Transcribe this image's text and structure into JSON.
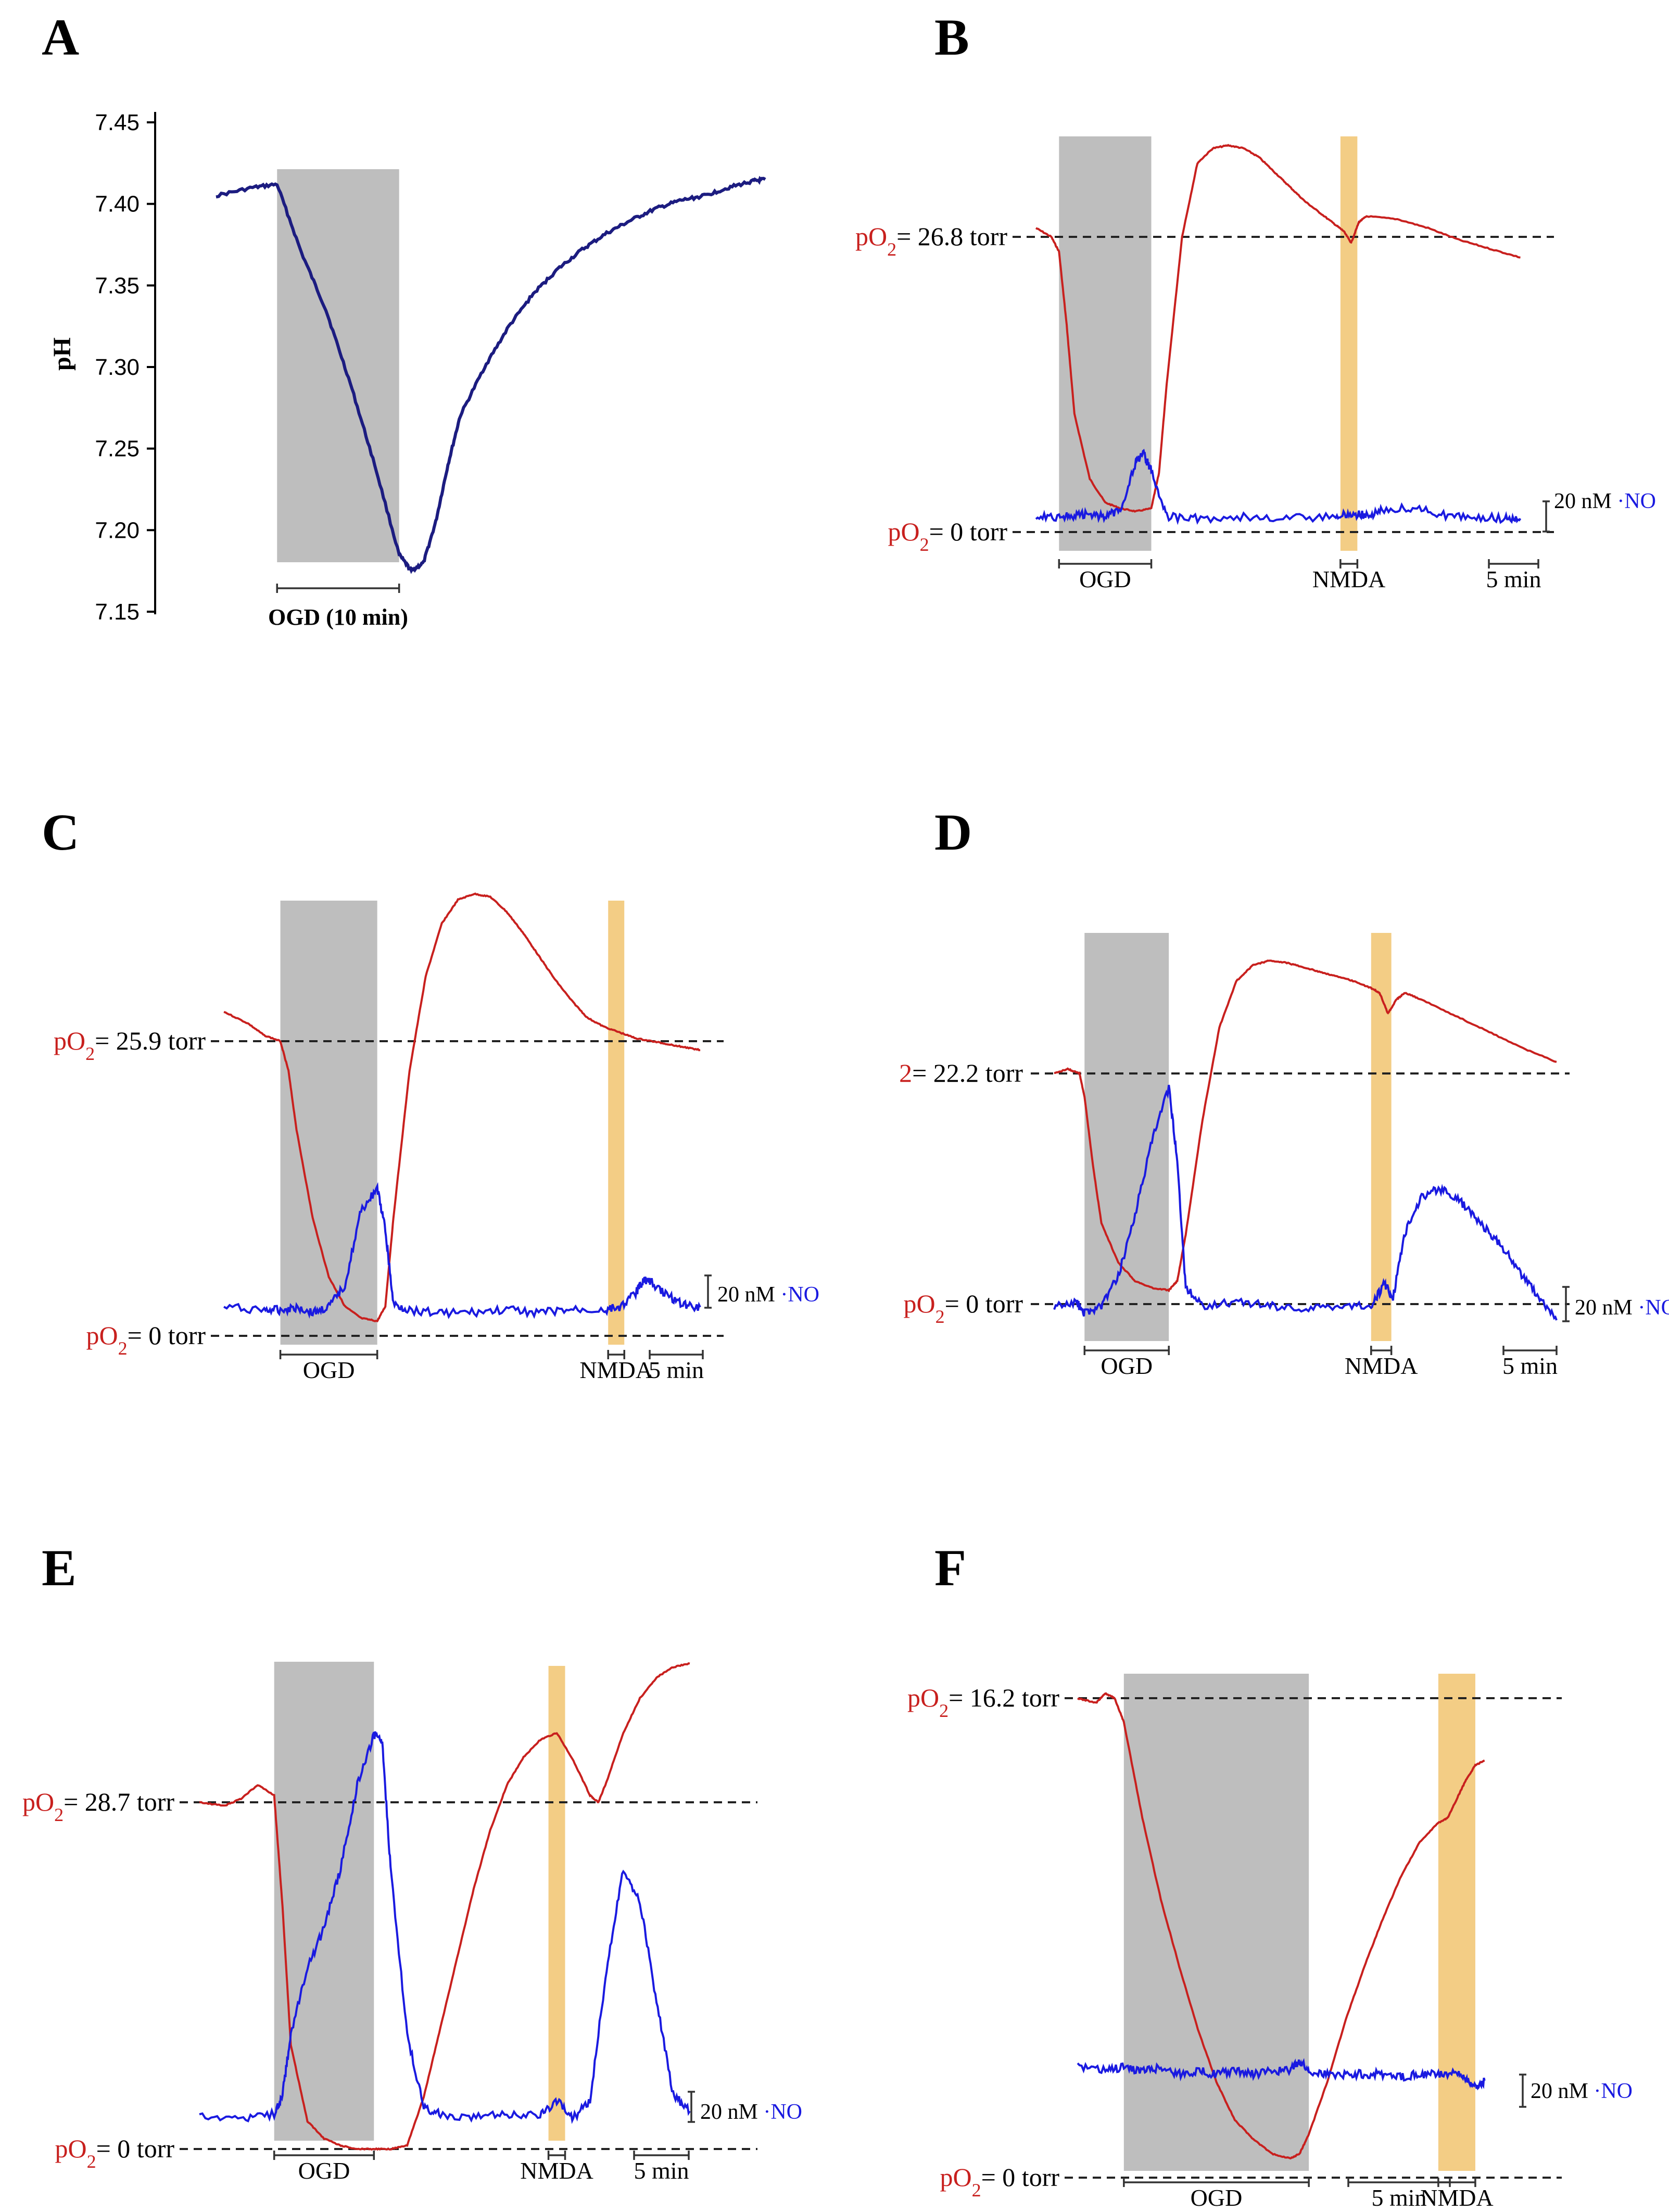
{
  "colors": {
    "o2": "#c8201e",
    "no": "#1a1ae0",
    "ph": "#1c1c80",
    "ogd_shade": "#bebebe",
    "nmda_shade": "#f3cd85",
    "text": "#000000"
  },
  "chart_data": [
    {
      "panel": "A",
      "type": "line",
      "ylabel": "pH",
      "ylim": [
        7.15,
        7.45
      ],
      "yticks": [
        "7.45",
        "7.40",
        "7.35",
        "7.30",
        "7.25",
        "7.20",
        "7.15"
      ],
      "xlim": [
        -5,
        40
      ],
      "ogd_window": [
        0,
        10
      ],
      "ogd_label": "OGD (10 min)",
      "series": [
        {
          "name": "pH",
          "x": [
            -5,
            -2,
            0,
            2,
            4,
            6,
            8,
            10,
            11,
            12,
            13,
            14,
            15,
            17,
            19,
            21,
            23,
            25,
            27,
            29,
            31,
            33,
            35,
            37,
            39,
            40
          ],
          "y": [
            7.405,
            7.41,
            7.412,
            7.37,
            7.335,
            7.29,
            7.24,
            7.185,
            7.175,
            7.18,
            7.205,
            7.24,
            7.27,
            7.3,
            7.325,
            7.345,
            7.36,
            7.372,
            7.382,
            7.39,
            7.397,
            7.402,
            7.405,
            7.41,
            7.414,
            7.415
          ]
        }
      ]
    },
    {
      "panel": "B",
      "type": "line",
      "baseline_label": {
        "prefix": "p",
        "mol": "O",
        "sub": "2",
        "value": "= 26.8 torr"
      },
      "zero_label": {
        "prefix": "p",
        "mol": "O",
        "sub": "2",
        "value": "= 0 torr"
      },
      "scale_bar": {
        "value": "20 nM",
        "species": "·NO"
      },
      "ogd_window": [
        0,
        6
      ],
      "nmda_window": [
        18.3,
        19.4
      ],
      "ogd_label": "OGD",
      "nmda_label": "NMDA",
      "time_scale_label": "5 min",
      "xlim": [
        -1.5,
        31
      ],
      "series": [
        {
          "name": "pO2",
          "x": [
            -1.5,
            -0.5,
            0,
            0.5,
            1,
            2,
            3,
            4,
            5,
            6,
            6.5,
            7,
            8,
            9,
            10,
            11,
            12,
            13,
            14,
            15,
            16,
            17,
            18,
            18.5,
            19,
            19.5,
            20,
            22,
            24,
            26,
            28,
            30
          ],
          "y": [
            1.03,
            1.0,
            0.95,
            0.7,
            0.4,
            0.18,
            0.1,
            0.08,
            0.07,
            0.08,
            0.2,
            0.5,
            1.0,
            1.25,
            1.3,
            1.31,
            1.3,
            1.27,
            1.22,
            1.17,
            1.12,
            1.08,
            1.04,
            1.02,
            0.98,
            1.05,
            1.07,
            1.06,
            1.03,
            0.99,
            0.96,
            0.93
          ]
        },
        {
          "name": "NO",
          "x": [
            -1.5,
            0,
            1,
            2,
            3,
            4,
            5,
            5.5,
            6,
            7,
            9,
            12,
            15,
            18,
            19,
            20,
            21,
            23,
            25,
            27,
            29,
            30
          ],
          "y": [
            0.06,
            0.05,
            0.06,
            0.07,
            0.05,
            0.1,
            0.4,
            0.45,
            0.35,
            0.05,
            0.04,
            0.05,
            0.04,
            0.05,
            0.07,
            0.06,
            0.09,
            0.11,
            0.06,
            0.05,
            0.04,
            0.04
          ]
        }
      ]
    },
    {
      "panel": "C",
      "type": "line",
      "baseline_label": {
        "prefix": "p",
        "mol": "O",
        "sub": "2",
        "value": "= 25.9 torr"
      },
      "zero_label": {
        "prefix": "p",
        "mol": "O",
        "sub": "2",
        "value": "= 0 torr"
      },
      "scale_bar": {
        "value": "20 nM",
        "species": "·NO"
      },
      "ogd_window": [
        0,
        6
      ],
      "nmda_window": [
        20.3,
        21.3
      ],
      "ogd_label": "OGD",
      "nmda_label": "NMDA",
      "time_scale_label": "5 min",
      "xlim": [
        -3.5,
        26
      ],
      "series": [
        {
          "name": "pO2",
          "x": [
            -3.5,
            -2,
            -1,
            0,
            0.5,
            1,
            2,
            3,
            4,
            5,
            6,
            6.5,
            7,
            8,
            9,
            10,
            11,
            12,
            13,
            14,
            15,
            16,
            17,
            18,
            19,
            20,
            21,
            22,
            23,
            24,
            25,
            26
          ],
          "y": [
            1.1,
            1.06,
            1.02,
            1.0,
            0.9,
            0.7,
            0.4,
            0.2,
            0.1,
            0.06,
            0.05,
            0.1,
            0.4,
            0.9,
            1.22,
            1.4,
            1.48,
            1.5,
            1.49,
            1.44,
            1.37,
            1.29,
            1.21,
            1.14,
            1.08,
            1.05,
            1.03,
            1.01,
            1.0,
            0.99,
            0.98,
            0.97
          ]
        },
        {
          "name": "NO",
          "x": [
            -3.5,
            -1,
            0,
            1,
            2,
            3,
            4,
            5,
            6,
            6.5,
            7,
            8,
            10,
            12,
            14,
            16,
            18,
            20,
            21,
            22,
            22.5,
            23,
            24,
            25,
            26
          ],
          "y": [
            0.07,
            0.06,
            0.06,
            0.07,
            0.05,
            0.07,
            0.15,
            0.42,
            0.5,
            0.35,
            0.08,
            0.06,
            0.05,
            0.05,
            0.06,
            0.05,
            0.06,
            0.06,
            0.07,
            0.12,
            0.17,
            0.16,
            0.11,
            0.08,
            0.07
          ]
        }
      ]
    },
    {
      "panel": "D",
      "type": "line",
      "baseline_label": {
        "prefix": "",
        "mol": "",
        "sub": "2",
        "value": "= 22.2 torr"
      },
      "zero_label": {
        "prefix": "p",
        "mol": "O",
        "sub": "2",
        "value": "= 0 torr"
      },
      "scale_bar": {
        "value": "20 nM",
        "species": "·NO"
      },
      "ogd_window": [
        0,
        5
      ],
      "nmda_window": [
        17,
        18.2
      ],
      "ogd_label": "OGD",
      "nmda_label": "NMDA",
      "time_scale_label": "5 min",
      "xlim": [
        -1.8,
        28
      ],
      "series": [
        {
          "name": "pO2",
          "x": [
            -1.8,
            -1,
            -0.3,
            0,
            0.5,
            1,
            2,
            3,
            4,
            5,
            5.5,
            6,
            7,
            8,
            9,
            10,
            11,
            12,
            13,
            14,
            15,
            16,
            17,
            17.5,
            18,
            18.5,
            19,
            20,
            22,
            24,
            26,
            28
          ],
          "y": [
            1.0,
            1.02,
            1.0,
            0.9,
            0.6,
            0.35,
            0.18,
            0.1,
            0.07,
            0.06,
            0.1,
            0.3,
            0.8,
            1.2,
            1.4,
            1.47,
            1.49,
            1.48,
            1.46,
            1.44,
            1.42,
            1.4,
            1.37,
            1.35,
            1.26,
            1.32,
            1.35,
            1.32,
            1.25,
            1.18,
            1.11,
            1.05
          ]
        },
        {
          "name": "NO",
          "x": [
            -1.8,
            -0.5,
            0,
            1,
            2,
            3,
            4,
            5,
            5.5,
            6,
            7,
            9,
            11,
            13,
            15,
            17,
            17.8,
            18.3,
            19,
            20,
            21,
            22,
            23,
            24,
            25,
            26,
            27,
            28
          ],
          "y": [
            0.0,
            0.01,
            -0.02,
            0.0,
            0.08,
            0.25,
            0.45,
            0.6,
            0.4,
            0.05,
            0.0,
            0.01,
            0.0,
            -0.01,
            0.0,
            0.0,
            0.06,
            0.02,
            0.2,
            0.3,
            0.32,
            0.3,
            0.25,
            0.2,
            0.15,
            0.08,
            0.02,
            -0.04
          ]
        }
      ]
    },
    {
      "panel": "E",
      "type": "line",
      "baseline_label": {
        "prefix": "p",
        "mol": "O",
        "sub": "2",
        "value": "= 28.7 torr"
      },
      "zero_label": {
        "prefix": "p",
        "mol": "O",
        "sub": "2",
        "value": "= 0 torr"
      },
      "scale_bar": {
        "value": "20 nM",
        "species": "·NO"
      },
      "ogd_window": [
        0,
        6
      ],
      "nmda_window": [
        16.5,
        17.5
      ],
      "ogd_label": "OGD",
      "nmda_label": "NMDA",
      "time_scale_label": "5 min",
      "xlim": [
        -4.5,
        25
      ],
      "series": [
        {
          "name": "pO2",
          "x": [
            -4.5,
            -3,
            -2,
            -1,
            0,
            0.5,
            1,
            2,
            3,
            4,
            5,
            6,
            7,
            8,
            9,
            10,
            11,
            12,
            13,
            14,
            15,
            16,
            17,
            18,
            19,
            19.5,
            20,
            21,
            22,
            23,
            24,
            25
          ],
          "y": [
            1.0,
            0.99,
            1.01,
            1.05,
            1.02,
            0.7,
            0.3,
            0.08,
            0.03,
            0.01,
            0.0,
            0.0,
            0.0,
            0.01,
            0.15,
            0.35,
            0.55,
            0.75,
            0.92,
            1.05,
            1.13,
            1.18,
            1.2,
            1.12,
            1.02,
            1.0,
            1.06,
            1.2,
            1.3,
            1.36,
            1.39,
            1.4
          ]
        },
        {
          "name": "NO",
          "x": [
            -4.5,
            -2,
            0,
            0.5,
            1,
            2,
            3,
            4,
            5,
            6,
            6.5,
            7,
            8,
            9,
            10,
            12,
            14,
            16,
            17,
            18,
            19,
            20,
            21,
            22,
            23,
            24,
            25
          ],
          "y": [
            0.06,
            0.05,
            0.06,
            0.12,
            0.3,
            0.5,
            0.62,
            0.8,
            1.05,
            1.2,
            1.18,
            0.8,
            0.3,
            0.08,
            0.06,
            0.05,
            0.06,
            0.06,
            0.1,
            0.05,
            0.1,
            0.5,
            0.8,
            0.7,
            0.4,
            0.12,
            0.07
          ]
        }
      ]
    },
    {
      "panel": "F",
      "type": "line",
      "baseline_label": {
        "prefix": "p",
        "mol": "O",
        "sub": "2",
        "value": "= 16.2 torr"
      },
      "zero_label": {
        "prefix": "p",
        "mol": "O",
        "sub": "2",
        "value": "= 0 torr"
      },
      "scale_bar": {
        "value": "20 nM",
        "species": "·NO"
      },
      "ogd_window": [
        0,
        10
      ],
      "nmda_window": [
        17,
        19
      ],
      "ogd_label": "OGD",
      "nmda_label": "NMDA",
      "time_scale_label": "5 min",
      "xlim": [
        -2.5,
        21
      ],
      "series": [
        {
          "name": "pO2",
          "x": [
            -2.5,
            -1.5,
            -1,
            -0.5,
            0,
            1,
            2,
            3,
            4,
            5,
            6,
            7,
            8,
            9,
            9.5,
            10,
            11,
            12,
            13,
            14,
            15,
            16,
            17,
            17.5,
            18,
            18.5,
            19,
            19.5
          ],
          "y": [
            1.0,
            0.99,
            1.01,
            1.0,
            0.95,
            0.75,
            0.58,
            0.44,
            0.31,
            0.2,
            0.12,
            0.08,
            0.05,
            0.04,
            0.05,
            0.09,
            0.2,
            0.33,
            0.44,
            0.54,
            0.63,
            0.7,
            0.74,
            0.75,
            0.79,
            0.83,
            0.86,
            0.87
          ]
        },
        {
          "name": "NO",
          "x": [
            -2.5,
            -1,
            0,
            1,
            2,
            3,
            4,
            5,
            6,
            7,
            8,
            9,
            9.5,
            10,
            11,
            12,
            13,
            14,
            15,
            16,
            17,
            18,
            18.5,
            19,
            19.5
          ],
          "y": [
            0.17,
            0.16,
            0.17,
            0.16,
            0.17,
            0.15,
            0.16,
            0.15,
            0.16,
            0.15,
            0.16,
            0.16,
            0.19,
            0.16,
            0.15,
            0.15,
            0.15,
            0.15,
            0.14,
            0.15,
            0.15,
            0.15,
            0.14,
            0.11,
            0.13
          ]
        }
      ]
    }
  ]
}
